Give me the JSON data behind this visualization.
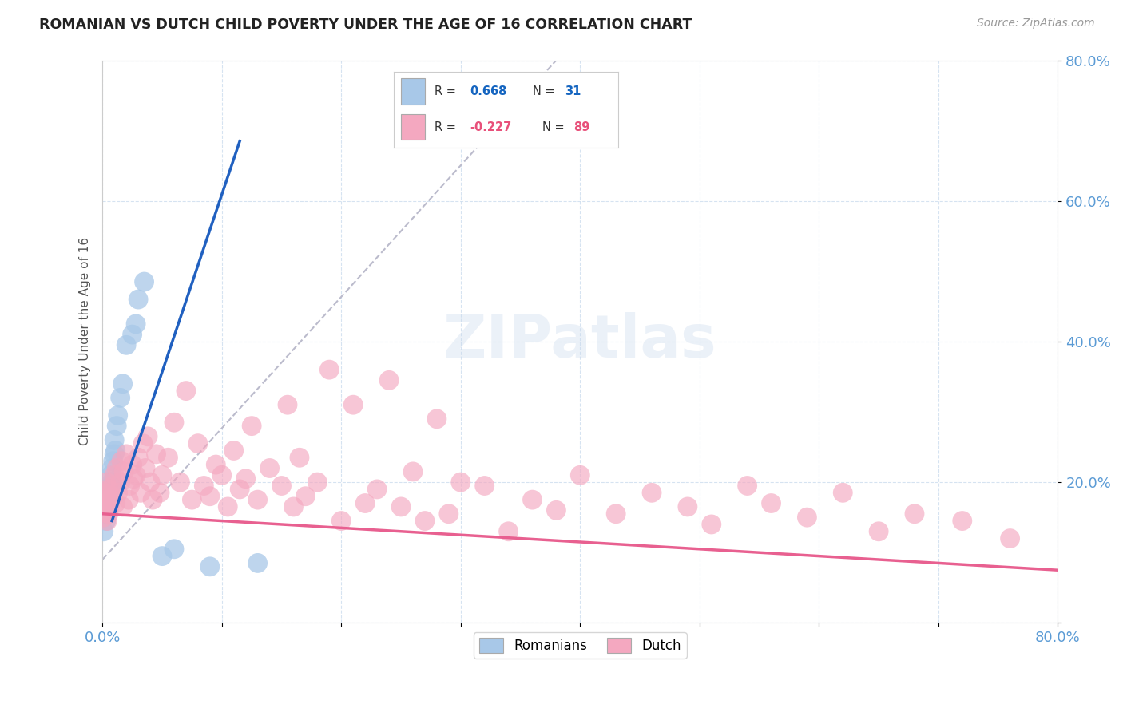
{
  "title": "ROMANIAN VS DUTCH CHILD POVERTY UNDER THE AGE OF 16 CORRELATION CHART",
  "source": "Source: ZipAtlas.com",
  "ylabel": "Child Poverty Under the Age of 16",
  "xlim": [
    0.0,
    0.8
  ],
  "ylim": [
    0.0,
    0.8
  ],
  "xtick_vals": [
    0.0,
    0.1,
    0.2,
    0.3,
    0.4,
    0.5,
    0.6,
    0.7,
    0.8
  ],
  "xtick_labels": [
    "0.0%",
    "",
    "",
    "",
    "",
    "",
    "",
    "",
    "80.0%"
  ],
  "ytick_vals": [
    0.0,
    0.2,
    0.4,
    0.6,
    0.8
  ],
  "ytick_labels": [
    "",
    "20.0%",
    "40.0%",
    "60.0%",
    "80.0%"
  ],
  "blue_R": 0.668,
  "blue_N": 31,
  "pink_R": -0.227,
  "pink_N": 89,
  "blue_color": "#A8C8E8",
  "pink_color": "#F4A8C0",
  "blue_line_color": "#2060C0",
  "pink_line_color": "#E86090",
  "dash_color": "#BBBBCC",
  "legend_labels": [
    "Romanians",
    "Dutch"
  ],
  "watermark": "ZIPatlas",
  "blue_line_x0": 0.008,
  "blue_line_y0": 0.145,
  "blue_line_x1": 0.115,
  "blue_line_y1": 0.685,
  "dash_line_x0": 0.0,
  "dash_line_y0": 0.09,
  "dash_line_x1": 0.38,
  "dash_line_y1": 0.8,
  "pink_line_x0": 0.0,
  "pink_line_y0": 0.155,
  "pink_line_x1": 0.8,
  "pink_line_y1": 0.075,
  "blue_x": [
    0.001,
    0.002,
    0.002,
    0.003,
    0.003,
    0.004,
    0.005,
    0.005,
    0.006,
    0.006,
    0.007,
    0.007,
    0.008,
    0.008,
    0.009,
    0.01,
    0.01,
    0.011,
    0.012,
    0.013,
    0.015,
    0.017,
    0.02,
    0.025,
    0.028,
    0.03,
    0.035,
    0.05,
    0.06,
    0.09,
    0.13
  ],
  "blue_y": [
    0.13,
    0.155,
    0.17,
    0.145,
    0.165,
    0.175,
    0.16,
    0.185,
    0.17,
    0.19,
    0.195,
    0.21,
    0.2,
    0.22,
    0.23,
    0.24,
    0.26,
    0.245,
    0.28,
    0.295,
    0.32,
    0.34,
    0.395,
    0.41,
    0.425,
    0.46,
    0.485,
    0.095,
    0.105,
    0.08,
    0.085
  ],
  "pink_x": [
    0.001,
    0.002,
    0.002,
    0.003,
    0.003,
    0.004,
    0.004,
    0.005,
    0.005,
    0.006,
    0.007,
    0.008,
    0.009,
    0.01,
    0.011,
    0.012,
    0.013,
    0.015,
    0.016,
    0.017,
    0.018,
    0.02,
    0.022,
    0.023,
    0.025,
    0.026,
    0.028,
    0.03,
    0.032,
    0.034,
    0.036,
    0.038,
    0.04,
    0.042,
    0.045,
    0.048,
    0.05,
    0.055,
    0.06,
    0.065,
    0.07,
    0.075,
    0.08,
    0.085,
    0.09,
    0.095,
    0.1,
    0.105,
    0.11,
    0.115,
    0.12,
    0.125,
    0.13,
    0.14,
    0.15,
    0.155,
    0.16,
    0.165,
    0.17,
    0.18,
    0.19,
    0.2,
    0.21,
    0.22,
    0.23,
    0.24,
    0.25,
    0.26,
    0.27,
    0.28,
    0.29,
    0.3,
    0.32,
    0.34,
    0.36,
    0.38,
    0.4,
    0.43,
    0.46,
    0.49,
    0.51,
    0.54,
    0.56,
    0.59,
    0.62,
    0.65,
    0.68,
    0.72,
    0.76
  ],
  "pink_y": [
    0.15,
    0.17,
    0.185,
    0.16,
    0.2,
    0.145,
    0.175,
    0.155,
    0.19,
    0.165,
    0.175,
    0.18,
    0.195,
    0.21,
    0.17,
    0.22,
    0.185,
    0.2,
    0.23,
    0.165,
    0.215,
    0.24,
    0.175,
    0.195,
    0.225,
    0.205,
    0.21,
    0.235,
    0.185,
    0.255,
    0.22,
    0.265,
    0.2,
    0.175,
    0.24,
    0.185,
    0.21,
    0.235,
    0.285,
    0.2,
    0.33,
    0.175,
    0.255,
    0.195,
    0.18,
    0.225,
    0.21,
    0.165,
    0.245,
    0.19,
    0.205,
    0.28,
    0.175,
    0.22,
    0.195,
    0.31,
    0.165,
    0.235,
    0.18,
    0.2,
    0.36,
    0.145,
    0.31,
    0.17,
    0.19,
    0.345,
    0.165,
    0.215,
    0.145,
    0.29,
    0.155,
    0.2,
    0.195,
    0.13,
    0.175,
    0.16,
    0.21,
    0.155,
    0.185,
    0.165,
    0.14,
    0.195,
    0.17,
    0.15,
    0.185,
    0.13,
    0.155,
    0.145,
    0.12
  ]
}
